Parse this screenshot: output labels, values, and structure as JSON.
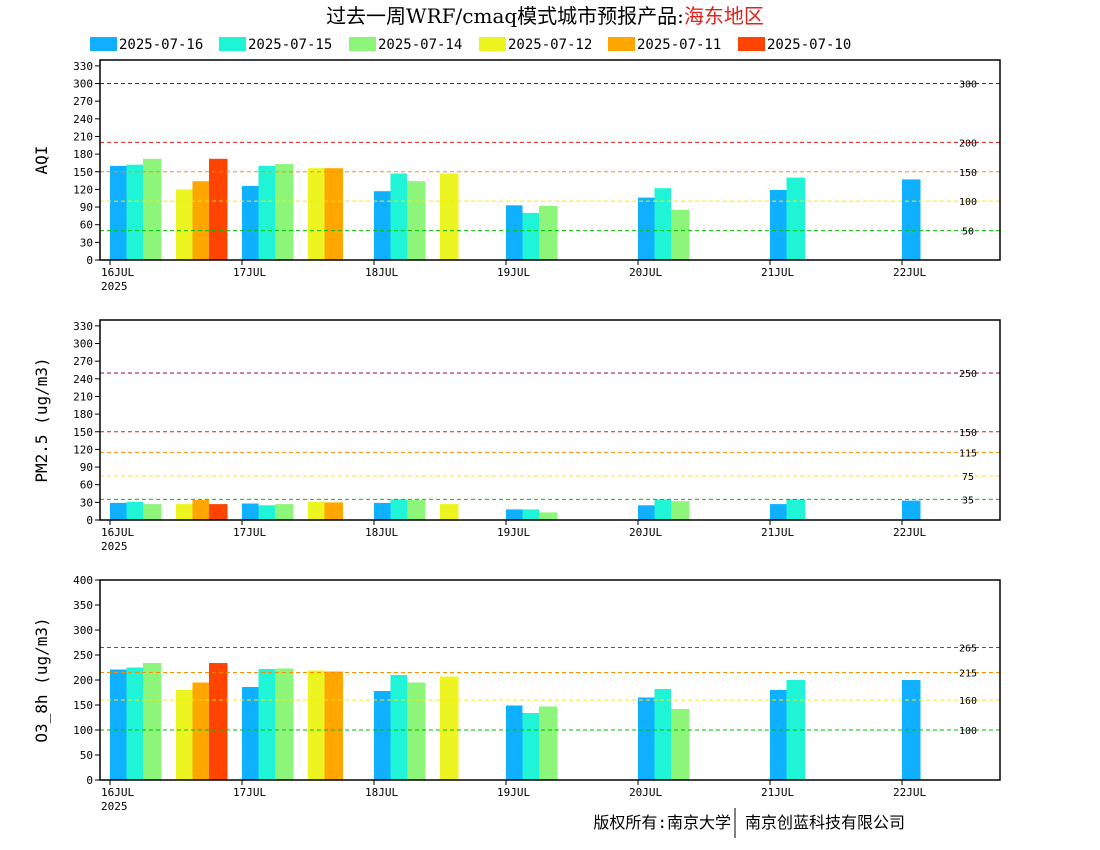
{
  "title": {
    "main": "过去一周WRF/cmaq模式城市预报产品:",
    "region": "海东地区"
  },
  "footer": {
    "left": "版权所有:南京大学",
    "right": "南京创蓝科技有限公司"
  },
  "legend": [
    {
      "label": "2025-07-16",
      "color": "#0fb0ff"
    },
    {
      "label": "2025-07-15",
      "color": "#1ff5d6"
    },
    {
      "label": "2025-07-14",
      "color": "#8cf57a"
    },
    {
      "label": "2025-07-12",
      "color": "#ecf51f"
    },
    {
      "label": "2025-07-11",
      "color": "#ffa600"
    },
    {
      "label": "2025-07-10",
      "color": "#ff4400"
    }
  ],
  "chart_data": [
    {
      "type": "bar",
      "ylabel": "AQI",
      "ylim": [
        0,
        340
      ],
      "yticks": [
        0,
        30,
        60,
        90,
        120,
        150,
        180,
        210,
        240,
        270,
        300,
        330
      ],
      "xticks": [
        {
          "label": "16JUL",
          "sub": "2025",
          "at": 0
        },
        {
          "label": "17JUL",
          "sub": "",
          "at": 1
        },
        {
          "label": "18JUL",
          "sub": "",
          "at": 2
        },
        {
          "label": "19JUL",
          "sub": "",
          "at": 3
        },
        {
          "label": "20JUL",
          "sub": "",
          "at": 4
        },
        {
          "label": "21JUL",
          "sub": "",
          "at": 5
        },
        {
          "label": "22JUL",
          "sub": "",
          "at": 6
        }
      ],
      "reference_lines": [
        {
          "value": 300,
          "label": "300",
          "color": "#a0003c"
        },
        {
          "value": 200,
          "label": "200",
          "color": "#e01e1e"
        },
        {
          "value": 150,
          "label": "150",
          "color": "#ff8c00"
        },
        {
          "value": 100,
          "label": "100",
          "color": "#ffe600"
        },
        {
          "value": 50,
          "label": "50",
          "color": "#00c000"
        }
      ],
      "bars": [
        {
          "x": 0.0,
          "w": 0.125,
          "value": 160,
          "series": 0
        },
        {
          "x": 0.125,
          "w": 0.125,
          "value": 162,
          "series": 1
        },
        {
          "x": 0.25,
          "w": 0.14,
          "value": 172,
          "series": 2
        },
        {
          "x": 0.5,
          "w": 0.125,
          "value": 120,
          "series": 3
        },
        {
          "x": 0.625,
          "w": 0.125,
          "value": 134,
          "series": 4
        },
        {
          "x": 0.75,
          "w": 0.14,
          "value": 172,
          "series": 5
        },
        {
          "x": 1.0,
          "w": 0.125,
          "value": 126,
          "series": 0
        },
        {
          "x": 1.125,
          "w": 0.125,
          "value": 160,
          "series": 1
        },
        {
          "x": 1.25,
          "w": 0.14,
          "value": 163,
          "series": 2
        },
        {
          "x": 1.5,
          "w": 0.125,
          "value": 156,
          "series": 3
        },
        {
          "x": 1.625,
          "w": 0.14,
          "value": 156,
          "series": 4
        },
        {
          "x": 2.0,
          "w": 0.125,
          "value": 117,
          "series": 0
        },
        {
          "x": 2.125,
          "w": 0.125,
          "value": 147,
          "series": 1
        },
        {
          "x": 2.25,
          "w": 0.14,
          "value": 134,
          "series": 2
        },
        {
          "x": 2.5,
          "w": 0.14,
          "value": 147,
          "series": 3
        },
        {
          "x": 3.0,
          "w": 0.125,
          "value": 93,
          "series": 0
        },
        {
          "x": 3.125,
          "w": 0.125,
          "value": 80,
          "series": 1
        },
        {
          "x": 3.25,
          "w": 0.14,
          "value": 92,
          "series": 2
        },
        {
          "x": 4.0,
          "w": 0.125,
          "value": 106,
          "series": 0
        },
        {
          "x": 4.125,
          "w": 0.125,
          "value": 122,
          "series": 1
        },
        {
          "x": 4.25,
          "w": 0.14,
          "value": 85,
          "series": 2
        },
        {
          "x": 5.0,
          "w": 0.125,
          "value": 119,
          "series": 0
        },
        {
          "x": 5.125,
          "w": 0.14,
          "value": 140,
          "series": 1
        },
        {
          "x": 6.0,
          "w": 0.14,
          "value": 137,
          "series": 0
        }
      ]
    },
    {
      "type": "bar",
      "ylabel": "PM2.5 (ug/m3)",
      "ylim": [
        0,
        340
      ],
      "yticks": [
        0,
        30,
        60,
        90,
        120,
        150,
        180,
        210,
        240,
        270,
        300,
        330
      ],
      "xticks": [
        {
          "label": "16JUL",
          "sub": "2025",
          "at": 0
        },
        {
          "label": "17JUL",
          "sub": "",
          "at": 1
        },
        {
          "label": "18JUL",
          "sub": "",
          "at": 2
        },
        {
          "label": "19JUL",
          "sub": "",
          "at": 3
        },
        {
          "label": "20JUL",
          "sub": "",
          "at": 4
        },
        {
          "label": "21JUL",
          "sub": "",
          "at": 5
        },
        {
          "label": "22JUL",
          "sub": "",
          "at": 6
        }
      ],
      "reference_lines": [
        {
          "value": 250,
          "label": "250",
          "color": "#a0003c"
        },
        {
          "value": 150,
          "label": "150",
          "color": "#e01e1e"
        },
        {
          "value": 115,
          "label": "115",
          "color": "#ff8c00"
        },
        {
          "value": 75,
          "label": "75",
          "color": "#ffe600"
        },
        {
          "value": 35,
          "label": "35",
          "color": "#00c000"
        }
      ],
      "bars": [
        {
          "x": 0.0,
          "w": 0.125,
          "value": 29,
          "series": 0
        },
        {
          "x": 0.125,
          "w": 0.125,
          "value": 31,
          "series": 1
        },
        {
          "x": 0.25,
          "w": 0.14,
          "value": 27,
          "series": 2
        },
        {
          "x": 0.5,
          "w": 0.125,
          "value": 27,
          "series": 3
        },
        {
          "x": 0.625,
          "w": 0.125,
          "value": 34,
          "series": 4
        },
        {
          "x": 0.75,
          "w": 0.14,
          "value": 27,
          "series": 5
        },
        {
          "x": 1.0,
          "w": 0.125,
          "value": 28,
          "series": 0
        },
        {
          "x": 1.125,
          "w": 0.125,
          "value": 25,
          "series": 1
        },
        {
          "x": 1.25,
          "w": 0.14,
          "value": 27,
          "series": 2
        },
        {
          "x": 1.5,
          "w": 0.125,
          "value": 31,
          "series": 3
        },
        {
          "x": 1.625,
          "w": 0.14,
          "value": 30,
          "series": 4
        },
        {
          "x": 2.0,
          "w": 0.125,
          "value": 29,
          "series": 0
        },
        {
          "x": 2.125,
          "w": 0.125,
          "value": 35,
          "series": 1
        },
        {
          "x": 2.25,
          "w": 0.14,
          "value": 34,
          "series": 2
        },
        {
          "x": 2.5,
          "w": 0.14,
          "value": 27,
          "series": 3
        },
        {
          "x": 3.0,
          "w": 0.125,
          "value": 18,
          "series": 0
        },
        {
          "x": 3.125,
          "w": 0.125,
          "value": 18,
          "series": 1
        },
        {
          "x": 3.25,
          "w": 0.14,
          "value": 13,
          "series": 2
        },
        {
          "x": 4.0,
          "w": 0.125,
          "value": 25,
          "series": 0
        },
        {
          "x": 4.125,
          "w": 0.125,
          "value": 35,
          "series": 1
        },
        {
          "x": 4.25,
          "w": 0.14,
          "value": 32,
          "series": 2
        },
        {
          "x": 5.0,
          "w": 0.125,
          "value": 27,
          "series": 0
        },
        {
          "x": 5.125,
          "w": 0.14,
          "value": 35,
          "series": 1
        },
        {
          "x": 6.0,
          "w": 0.14,
          "value": 33,
          "series": 0
        }
      ]
    },
    {
      "type": "bar",
      "ylabel": "O3_8h (ug/m3)",
      "ylim": [
        0,
        400
      ],
      "yticks": [
        0,
        50,
        100,
        150,
        200,
        250,
        300,
        350,
        400
      ],
      "xticks": [
        {
          "label": "16JUL",
          "sub": "2025",
          "at": 0
        },
        {
          "label": "17JUL",
          "sub": "",
          "at": 1
        },
        {
          "label": "18JUL",
          "sub": "",
          "at": 2
        },
        {
          "label": "19JUL",
          "sub": "",
          "at": 3
        },
        {
          "label": "20JUL",
          "sub": "",
          "at": 4
        },
        {
          "label": "21JUL",
          "sub": "",
          "at": 5
        },
        {
          "label": "22JUL",
          "sub": "",
          "at": 6
        }
      ],
      "reference_lines": [
        {
          "value": 265,
          "label": "265",
          "color": "#e01e1e"
        },
        {
          "value": 215,
          "label": "215",
          "color": "#ff8c00"
        },
        {
          "value": 160,
          "label": "160",
          "color": "#ffe600"
        },
        {
          "value": 100,
          "label": "100",
          "color": "#00c000"
        }
      ],
      "bars": [
        {
          "x": 0.0,
          "w": 0.125,
          "value": 221,
          "series": 0
        },
        {
          "x": 0.125,
          "w": 0.125,
          "value": 225,
          "series": 1
        },
        {
          "x": 0.25,
          "w": 0.14,
          "value": 234,
          "series": 2
        },
        {
          "x": 0.5,
          "w": 0.125,
          "value": 180,
          "series": 3
        },
        {
          "x": 0.625,
          "w": 0.125,
          "value": 195,
          "series": 4
        },
        {
          "x": 0.75,
          "w": 0.14,
          "value": 234,
          "series": 5
        },
        {
          "x": 1.0,
          "w": 0.125,
          "value": 186,
          "series": 0
        },
        {
          "x": 1.125,
          "w": 0.125,
          "value": 222,
          "series": 1
        },
        {
          "x": 1.25,
          "w": 0.14,
          "value": 223,
          "series": 2
        },
        {
          "x": 1.5,
          "w": 0.125,
          "value": 219,
          "series": 3
        },
        {
          "x": 1.625,
          "w": 0.14,
          "value": 217,
          "series": 4
        },
        {
          "x": 2.0,
          "w": 0.125,
          "value": 178,
          "series": 0
        },
        {
          "x": 2.125,
          "w": 0.125,
          "value": 210,
          "series": 1
        },
        {
          "x": 2.25,
          "w": 0.14,
          "value": 195,
          "series": 2
        },
        {
          "x": 2.5,
          "w": 0.14,
          "value": 207,
          "series": 3
        },
        {
          "x": 3.0,
          "w": 0.125,
          "value": 149,
          "series": 0
        },
        {
          "x": 3.125,
          "w": 0.125,
          "value": 134,
          "series": 1
        },
        {
          "x": 3.25,
          "w": 0.14,
          "value": 147,
          "series": 2
        },
        {
          "x": 4.0,
          "w": 0.125,
          "value": 165,
          "series": 0
        },
        {
          "x": 4.125,
          "w": 0.125,
          "value": 182,
          "series": 1
        },
        {
          "x": 4.25,
          "w": 0.14,
          "value": 142,
          "series": 2
        },
        {
          "x": 5.0,
          "w": 0.125,
          "value": 180,
          "series": 0
        },
        {
          "x": 5.125,
          "w": 0.14,
          "value": 200,
          "series": 1
        },
        {
          "x": 6.0,
          "w": 0.14,
          "value": 200,
          "series": 0
        }
      ]
    }
  ]
}
